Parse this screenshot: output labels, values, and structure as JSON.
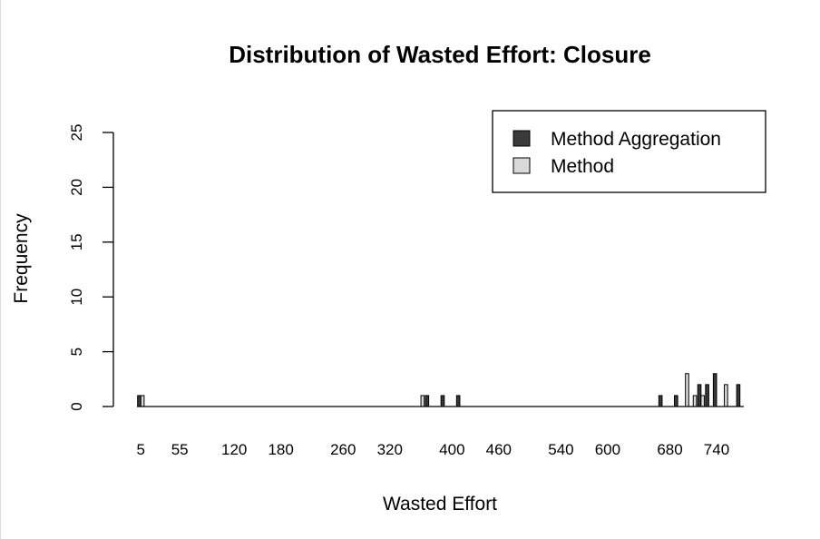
{
  "chart_data": {
    "type": "bar",
    "title": "Distribution of Wasted Effort: Closure",
    "xlabel": "Wasted Effort",
    "ylabel": "Frequency",
    "ylim": [
      0,
      25
    ],
    "y_ticks": [
      0,
      5,
      10,
      15,
      20,
      25
    ],
    "x_tick_labels": [
      "5",
      "55",
      "120",
      "180",
      "260",
      "320",
      "400",
      "460",
      "540",
      "600",
      "680",
      "740"
    ],
    "grid": false,
    "legend_position": "top-right",
    "colors": {
      "Method Aggregation": "#3a3a3a",
      "Method": "#d9d9d9"
    },
    "categories": [
      "5",
      "15",
      "25",
      "35",
      "45",
      "55",
      "65",
      "75",
      "85",
      "95",
      "105",
      "115",
      "120",
      "130",
      "140",
      "150",
      "160",
      "170",
      "180",
      "190",
      "200",
      "210",
      "220",
      "230",
      "240",
      "250",
      "260",
      "270",
      "280",
      "290",
      "300",
      "310",
      "320",
      "330",
      "340",
      "350",
      "360",
      "370",
      "380",
      "390",
      "400",
      "410",
      "420",
      "430",
      "440",
      "450",
      "460",
      "470",
      "480",
      "490",
      "500",
      "510",
      "520",
      "530",
      "540",
      "550",
      "560",
      "570",
      "580",
      "590",
      "600",
      "610",
      "620",
      "630",
      "640",
      "650",
      "660",
      "670",
      "680",
      "690",
      "700",
      "710",
      "720",
      "730",
      "740",
      "750",
      "760",
      "770"
    ],
    "series": [
      {
        "name": "Method Aggregation",
        "values": [
          1,
          0,
          0,
          0,
          0,
          0,
          0,
          0,
          0,
          0,
          0,
          0,
          0,
          0,
          0,
          0,
          0,
          0,
          0,
          0,
          0,
          0,
          0,
          0,
          0,
          0,
          0,
          0,
          0,
          0,
          0,
          0,
          0,
          0,
          0,
          0,
          0,
          1,
          0,
          1,
          0,
          1,
          0,
          0,
          0,
          0,
          0,
          0,
          0,
          0,
          0,
          0,
          0,
          0,
          0,
          0,
          0,
          0,
          0,
          0,
          0,
          0,
          0,
          0,
          0,
          0,
          0,
          1,
          0,
          1,
          0,
          0,
          2,
          2,
          3,
          0,
          0,
          2
        ]
      },
      {
        "name": "Method",
        "values": [
          1,
          0,
          0,
          0,
          0,
          0,
          0,
          0,
          0,
          0,
          0,
          0,
          0,
          0,
          0,
          0,
          0,
          0,
          0,
          0,
          0,
          0,
          0,
          0,
          0,
          0,
          0,
          0,
          0,
          0,
          0,
          0,
          0,
          0,
          0,
          0,
          1,
          0,
          0,
          0,
          0,
          0,
          0,
          0,
          0,
          0,
          0,
          0,
          0,
          0,
          0,
          0,
          0,
          0,
          0,
          0,
          0,
          0,
          0,
          0,
          0,
          0,
          0,
          0,
          0,
          0,
          0,
          0,
          0,
          0,
          3,
          1,
          1,
          0,
          0,
          2,
          0,
          0
        ]
      }
    ]
  }
}
